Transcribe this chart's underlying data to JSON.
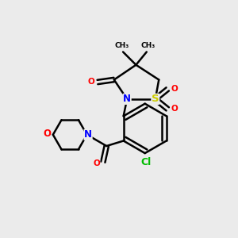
{
  "bg_color": "#ebebeb",
  "atom_colors": {
    "C": "#000000",
    "N": "#0000ff",
    "O": "#ff0000",
    "S": "#cccc00",
    "Cl": "#00bb00",
    "H": "#000000"
  },
  "bond_color": "#000000",
  "bond_width": 1.8
}
